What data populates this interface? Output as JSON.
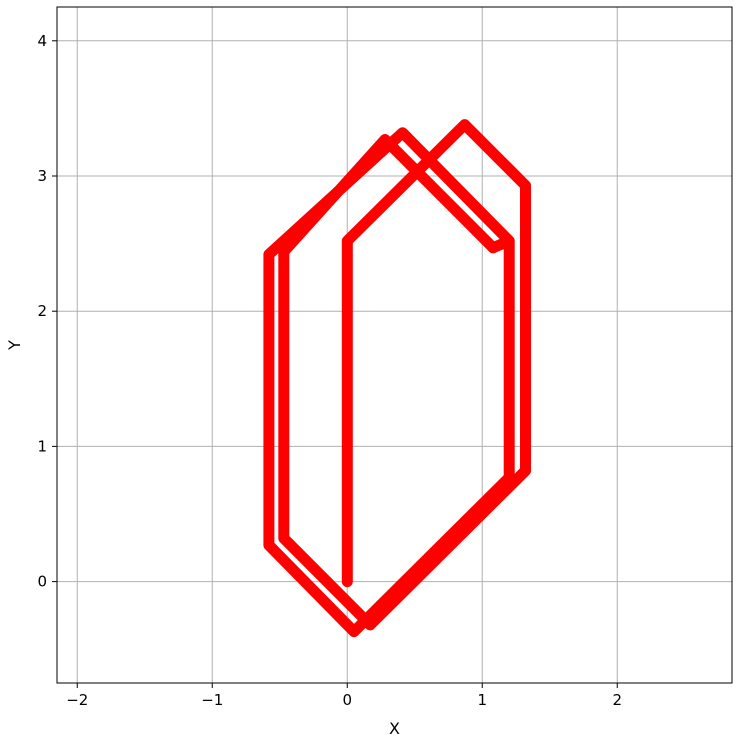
{
  "chart_data": {
    "type": "line",
    "title": "",
    "xlabel": "X",
    "ylabel": "Y",
    "xlim": [
      -2.15,
      2.85
    ],
    "ylim": [
      -0.75,
      4.25
    ],
    "xticks": [
      -2,
      -1,
      0,
      1,
      2
    ],
    "yticks": [
      0,
      1,
      2,
      3,
      4
    ],
    "grid": true,
    "colors": {
      "line": "#ff0000",
      "grid": "#b0b0b0",
      "axes": "#000000"
    },
    "series": [
      {
        "x": [
          0.0,
          0.0,
          0.87,
          1.32,
          1.32,
          0.17,
          -0.47,
          -0.47,
          0.28,
          1.08
        ],
        "y": [
          0.0,
          2.52,
          3.38,
          2.93,
          0.82,
          -0.32,
          0.32,
          2.44,
          3.27,
          2.47
        ]
      },
      {
        "x": [
          1.08,
          1.2,
          1.2,
          0.05,
          -0.58,
          -0.58,
          0.41,
          1.2
        ],
        "y": [
          2.47,
          2.52,
          0.77,
          -0.37,
          0.27,
          2.42,
          3.32,
          2.52
        ]
      }
    ]
  }
}
